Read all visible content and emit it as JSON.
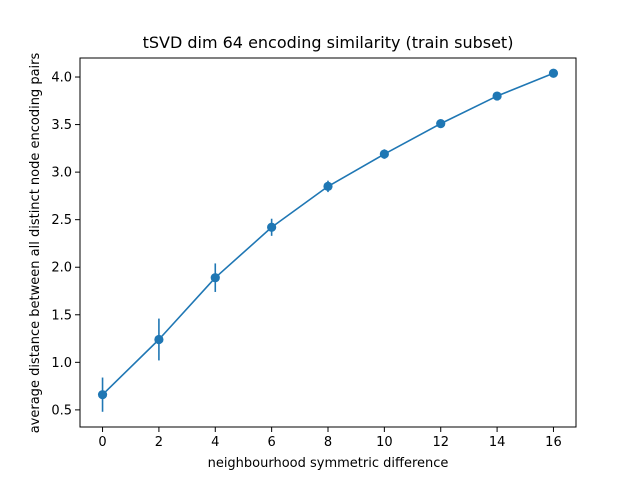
{
  "chart_data": {
    "type": "line",
    "title": "tSVD dim 64 encoding similarity (train subset)",
    "xlabel": "neighbourhood symmetric difference",
    "ylabel": "average distance between all distinct node encoding pairs",
    "xlim": [
      -0.8,
      16.8
    ],
    "ylim": [
      0.32,
      4.2
    ],
    "xticks": [
      0,
      2,
      4,
      6,
      8,
      10,
      12,
      14,
      16
    ],
    "yticks": [
      0.5,
      1.0,
      1.5,
      2.0,
      2.5,
      3.0,
      3.5,
      4.0
    ],
    "xtick_labels": [
      "0",
      "2",
      "4",
      "6",
      "8",
      "10",
      "12",
      "14",
      "16"
    ],
    "ytick_labels": [
      "0.5",
      "1.0",
      "1.5",
      "2.0",
      "2.5",
      "3.0",
      "3.5",
      "4.0"
    ],
    "grid": false,
    "color": "#1f77b4",
    "series": [
      {
        "x": [
          0,
          2,
          4,
          6,
          8,
          10,
          12,
          14,
          16
        ],
        "y": [
          0.66,
          1.24,
          1.89,
          2.42,
          2.85,
          3.19,
          3.51,
          3.8,
          4.04
        ],
        "err": [
          0.18,
          0.22,
          0.15,
          0.09,
          0.06,
          0.05,
          0.04,
          0.03,
          0.02
        ]
      }
    ]
  }
}
